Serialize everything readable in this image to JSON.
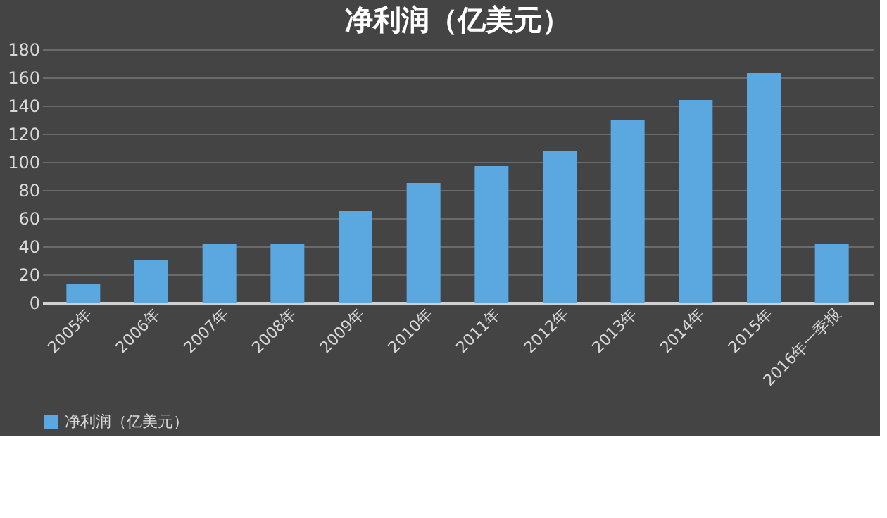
{
  "chart_data": {
    "type": "bar",
    "title": "净利润（亿美元）",
    "categories": [
      "2005年",
      "2006年",
      "2007年",
      "2008年",
      "2009年",
      "2010年",
      "2011年",
      "2012年",
      "2013年",
      "2014年",
      "2015年",
      "2016年一季报"
    ],
    "series": [
      {
        "name": "净利润（亿美元）",
        "color": "#5ba7e0",
        "values": [
          13,
          30,
          42,
          42,
          65,
          85,
          97,
          108,
          130,
          144,
          163,
          42
        ]
      }
    ],
    "ylim": [
      0,
      180
    ],
    "yticks": [
      0,
      20,
      40,
      60,
      80,
      100,
      120,
      140,
      160,
      180
    ],
    "grid": "y",
    "legend": "bottom"
  }
}
